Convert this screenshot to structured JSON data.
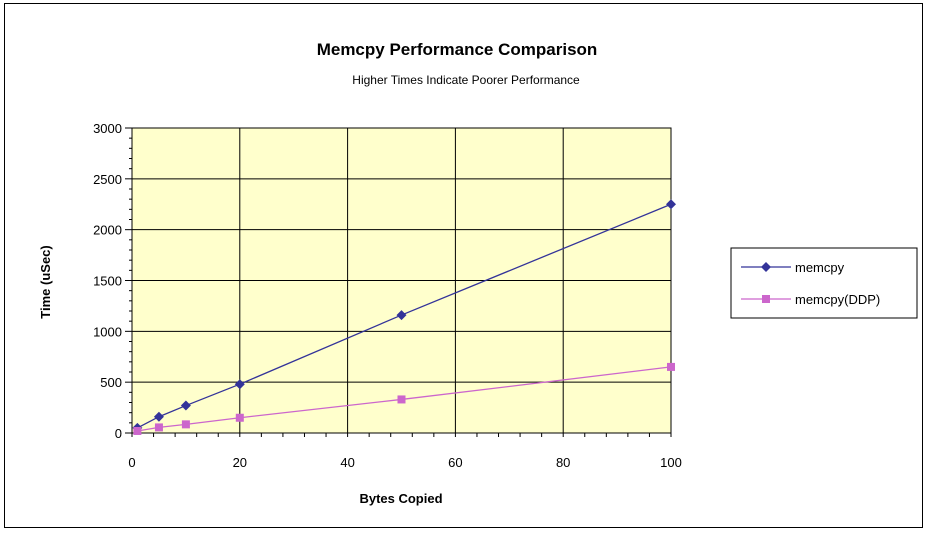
{
  "chart_data": {
    "type": "scatter",
    "title": "Memcpy Performance Comparison",
    "subtitle": "Higher Times Indicate Poorer Performance",
    "xlabel": "Bytes Copied",
    "ylabel": "Time (uSec)",
    "xlim": [
      0,
      100
    ],
    "ylim": [
      0,
      3000
    ],
    "x_ticks": [
      0,
      20,
      40,
      60,
      80,
      100
    ],
    "y_ticks": [
      0,
      500,
      1000,
      1500,
      2000,
      2500,
      3000
    ],
    "grid": true,
    "plot_background": "#FFFFCC",
    "legend_position": "right",
    "series": [
      {
        "name": "memcpy",
        "color": "#333399",
        "marker": "diamond",
        "x": [
          1,
          5,
          10,
          20,
          50,
          100
        ],
        "y": [
          50,
          160,
          270,
          480,
          1160,
          2250
        ]
      },
      {
        "name": "memcpy(DDP)",
        "color": "#CC66CC",
        "marker": "square",
        "x": [
          1,
          5,
          10,
          20,
          50,
          100
        ],
        "y": [
          20,
          55,
          85,
          150,
          330,
          650
        ]
      }
    ]
  }
}
